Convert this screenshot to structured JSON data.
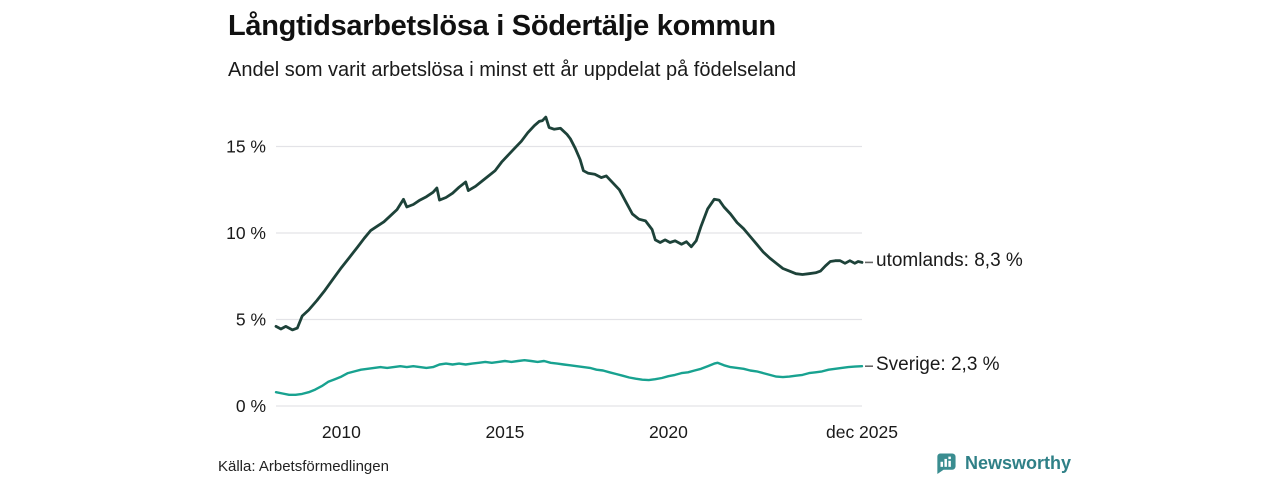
{
  "header": {
    "title": "Långtidsarbetslösa i Södertälje kommun",
    "subtitle": "Andel som varit arbetslösa i minst ett år uppdelat på födelseland"
  },
  "footer": {
    "source": "Källa: Arbetsförmedlingen",
    "brand_name": "Newsworthy"
  },
  "colors": {
    "utomlands_line": "#1d4239",
    "sverige_line": "#18a290",
    "grid": "#e3e3e7",
    "text": "#1a1a1a",
    "connector": "#666666",
    "brand_teal": "#2f8087",
    "brand_icon_bg": "#3a8d90"
  },
  "chart_data": {
    "type": "line",
    "title": "Långtidsarbetslösa i Södertälje kommun",
    "subtitle": "Andel som varit arbetslösa i minst ett år uppdelat på födelseland",
    "xlabel": "",
    "ylabel": "",
    "x_unit": "year",
    "x_range": [
      2008,
      2025.92
    ],
    "ylim": [
      0,
      17
    ],
    "grid": "horizontal",
    "legend_position": "end-of-line-labels",
    "y_ticks": [
      {
        "value": 0,
        "label": "0 %"
      },
      {
        "value": 5,
        "label": "5 %"
      },
      {
        "value": 10,
        "label": "10 %"
      },
      {
        "value": 15,
        "label": "15 %"
      }
    ],
    "x_ticks": [
      {
        "value": 2010,
        "label": "2010"
      },
      {
        "value": 2015,
        "label": "2015"
      },
      {
        "value": 2020,
        "label": "2020"
      },
      {
        "value": 2025.92,
        "label": "dec 2025"
      }
    ],
    "series": [
      {
        "name": "utomlands",
        "end_label": "utomlands: 8,3 %",
        "end_value_pct": "8,3 %",
        "color": "#1d4239",
        "stroke_width": 2.8,
        "points": [
          [
            2008.0,
            4.6
          ],
          [
            2008.15,
            4.45
          ],
          [
            2008.3,
            4.6
          ],
          [
            2008.5,
            4.4
          ],
          [
            2008.65,
            4.5
          ],
          [
            2008.8,
            5.2
          ],
          [
            2009.0,
            5.55
          ],
          [
            2009.25,
            6.1
          ],
          [
            2009.5,
            6.7
          ],
          [
            2009.75,
            7.35
          ],
          [
            2010.0,
            8.0
          ],
          [
            2010.25,
            8.6
          ],
          [
            2010.5,
            9.2
          ],
          [
            2010.7,
            9.7
          ],
          [
            2010.9,
            10.15
          ],
          [
            2011.1,
            10.4
          ],
          [
            2011.3,
            10.65
          ],
          [
            2011.5,
            11.0
          ],
          [
            2011.7,
            11.35
          ],
          [
            2011.9,
            11.95
          ],
          [
            2012.0,
            11.5
          ],
          [
            2012.2,
            11.65
          ],
          [
            2012.4,
            11.9
          ],
          [
            2012.6,
            12.1
          ],
          [
            2012.8,
            12.35
          ],
          [
            2012.92,
            12.6
          ],
          [
            2013.0,
            11.9
          ],
          [
            2013.2,
            12.05
          ],
          [
            2013.4,
            12.3
          ],
          [
            2013.6,
            12.65
          ],
          [
            2013.8,
            12.95
          ],
          [
            2013.88,
            12.45
          ],
          [
            2014.1,
            12.7
          ],
          [
            2014.3,
            13.0
          ],
          [
            2014.5,
            13.3
          ],
          [
            2014.7,
            13.6
          ],
          [
            2014.9,
            14.1
          ],
          [
            2015.1,
            14.5
          ],
          [
            2015.3,
            14.9
          ],
          [
            2015.5,
            15.3
          ],
          [
            2015.7,
            15.8
          ],
          [
            2015.9,
            16.2
          ],
          [
            2016.05,
            16.45
          ],
          [
            2016.15,
            16.5
          ],
          [
            2016.25,
            16.7
          ],
          [
            2016.35,
            16.1
          ],
          [
            2016.5,
            16.0
          ],
          [
            2016.7,
            16.05
          ],
          [
            2016.9,
            15.7
          ],
          [
            2017.0,
            15.45
          ],
          [
            2017.15,
            14.9
          ],
          [
            2017.3,
            14.25
          ],
          [
            2017.4,
            13.6
          ],
          [
            2017.55,
            13.45
          ],
          [
            2017.75,
            13.4
          ],
          [
            2017.95,
            13.2
          ],
          [
            2018.1,
            13.3
          ],
          [
            2018.3,
            12.9
          ],
          [
            2018.5,
            12.5
          ],
          [
            2018.7,
            11.8
          ],
          [
            2018.9,
            11.1
          ],
          [
            2019.1,
            10.8
          ],
          [
            2019.3,
            10.7
          ],
          [
            2019.5,
            10.2
          ],
          [
            2019.6,
            9.6
          ],
          [
            2019.75,
            9.45
          ],
          [
            2019.9,
            9.6
          ],
          [
            2020.05,
            9.45
          ],
          [
            2020.2,
            9.55
          ],
          [
            2020.4,
            9.35
          ],
          [
            2020.55,
            9.5
          ],
          [
            2020.7,
            9.2
          ],
          [
            2020.85,
            9.55
          ],
          [
            2021.0,
            10.4
          ],
          [
            2021.2,
            11.4
          ],
          [
            2021.4,
            11.95
          ],
          [
            2021.55,
            11.9
          ],
          [
            2021.7,
            11.5
          ],
          [
            2021.9,
            11.1
          ],
          [
            2022.1,
            10.6
          ],
          [
            2022.3,
            10.25
          ],
          [
            2022.5,
            9.8
          ],
          [
            2022.7,
            9.35
          ],
          [
            2022.9,
            8.9
          ],
          [
            2023.1,
            8.55
          ],
          [
            2023.3,
            8.25
          ],
          [
            2023.5,
            7.95
          ],
          [
            2023.7,
            7.8
          ],
          [
            2023.9,
            7.65
          ],
          [
            2024.1,
            7.6
          ],
          [
            2024.3,
            7.65
          ],
          [
            2024.5,
            7.7
          ],
          [
            2024.65,
            7.8
          ],
          [
            2024.8,
            8.1
          ],
          [
            2024.95,
            8.35
          ],
          [
            2025.1,
            8.4
          ],
          [
            2025.25,
            8.4
          ],
          [
            2025.4,
            8.25
          ],
          [
            2025.55,
            8.4
          ],
          [
            2025.7,
            8.25
          ],
          [
            2025.8,
            8.35
          ],
          [
            2025.92,
            8.3
          ]
        ]
      },
      {
        "name": "Sverige",
        "end_label": "Sverige: 2,3 %",
        "end_value_pct": "2,3 %",
        "color": "#18a290",
        "stroke_width": 2.4,
        "points": [
          [
            2008.0,
            0.8
          ],
          [
            2008.2,
            0.72
          ],
          [
            2008.4,
            0.65
          ],
          [
            2008.6,
            0.65
          ],
          [
            2008.8,
            0.7
          ],
          [
            2009.0,
            0.8
          ],
          [
            2009.2,
            0.95
          ],
          [
            2009.4,
            1.15
          ],
          [
            2009.6,
            1.4
          ],
          [
            2009.8,
            1.55
          ],
          [
            2010.0,
            1.7
          ],
          [
            2010.2,
            1.9
          ],
          [
            2010.4,
            2.0
          ],
          [
            2010.6,
            2.1
          ],
          [
            2010.8,
            2.15
          ],
          [
            2011.0,
            2.2
          ],
          [
            2011.2,
            2.25
          ],
          [
            2011.4,
            2.2
          ],
          [
            2011.6,
            2.25
          ],
          [
            2011.8,
            2.3
          ],
          [
            2012.0,
            2.25
          ],
          [
            2012.2,
            2.3
          ],
          [
            2012.4,
            2.25
          ],
          [
            2012.6,
            2.2
          ],
          [
            2012.8,
            2.25
          ],
          [
            2013.0,
            2.4
          ],
          [
            2013.2,
            2.45
          ],
          [
            2013.4,
            2.4
          ],
          [
            2013.6,
            2.45
          ],
          [
            2013.8,
            2.4
          ],
          [
            2014.0,
            2.45
          ],
          [
            2014.2,
            2.5
          ],
          [
            2014.4,
            2.55
          ],
          [
            2014.6,
            2.5
          ],
          [
            2014.8,
            2.55
          ],
          [
            2015.0,
            2.6
          ],
          [
            2015.2,
            2.55
          ],
          [
            2015.4,
            2.6
          ],
          [
            2015.6,
            2.65
          ],
          [
            2015.8,
            2.6
          ],
          [
            2016.0,
            2.55
          ],
          [
            2016.2,
            2.6
          ],
          [
            2016.4,
            2.5
          ],
          [
            2016.6,
            2.45
          ],
          [
            2016.8,
            2.4
          ],
          [
            2017.0,
            2.35
          ],
          [
            2017.2,
            2.3
          ],
          [
            2017.4,
            2.25
          ],
          [
            2017.6,
            2.2
          ],
          [
            2017.8,
            2.1
          ],
          [
            2018.0,
            2.05
          ],
          [
            2018.2,
            1.95
          ],
          [
            2018.4,
            1.85
          ],
          [
            2018.6,
            1.75
          ],
          [
            2018.8,
            1.65
          ],
          [
            2019.0,
            1.58
          ],
          [
            2019.2,
            1.52
          ],
          [
            2019.4,
            1.5
          ],
          [
            2019.6,
            1.55
          ],
          [
            2019.8,
            1.62
          ],
          [
            2020.0,
            1.72
          ],
          [
            2020.2,
            1.8
          ],
          [
            2020.4,
            1.9
          ],
          [
            2020.6,
            1.95
          ],
          [
            2020.8,
            2.05
          ],
          [
            2021.0,
            2.15
          ],
          [
            2021.2,
            2.3
          ],
          [
            2021.4,
            2.45
          ],
          [
            2021.5,
            2.5
          ],
          [
            2021.7,
            2.35
          ],
          [
            2021.9,
            2.25
          ],
          [
            2022.1,
            2.2
          ],
          [
            2022.3,
            2.15
          ],
          [
            2022.5,
            2.05
          ],
          [
            2022.7,
            2.0
          ],
          [
            2022.9,
            1.9
          ],
          [
            2023.1,
            1.8
          ],
          [
            2023.3,
            1.7
          ],
          [
            2023.5,
            1.67
          ],
          [
            2023.7,
            1.7
          ],
          [
            2023.9,
            1.75
          ],
          [
            2024.1,
            1.8
          ],
          [
            2024.3,
            1.9
          ],
          [
            2024.5,
            1.95
          ],
          [
            2024.7,
            2.0
          ],
          [
            2024.9,
            2.1
          ],
          [
            2025.1,
            2.15
          ],
          [
            2025.3,
            2.2
          ],
          [
            2025.5,
            2.25
          ],
          [
            2025.7,
            2.28
          ],
          [
            2025.92,
            2.3
          ]
        ]
      }
    ]
  }
}
